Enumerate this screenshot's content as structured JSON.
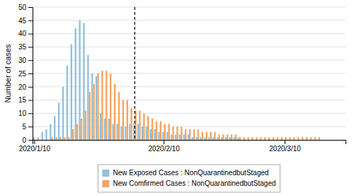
{
  "chart_data": {
    "type": "bar",
    "ylabel": "Number of cases",
    "categories": [
      "2020/1/10",
      null,
      null,
      null,
      null,
      null,
      null,
      null,
      null,
      null,
      null,
      null,
      null,
      null,
      null,
      null,
      null,
      null,
      null,
      null,
      null,
      null,
      null,
      null,
      null,
      null,
      null,
      null,
      null,
      null,
      null,
      "2020/2/10",
      null,
      null,
      null,
      null,
      null,
      null,
      null,
      null,
      null,
      null,
      null,
      null,
      null,
      null,
      null,
      null,
      null,
      null,
      null,
      null,
      null,
      null,
      null,
      null,
      null,
      null,
      null,
      null,
      "2020/3/10",
      null,
      null,
      null,
      null,
      null,
      null,
      null,
      null,
      null,
      null,
      null,
      null,
      null,
      null
    ],
    "series": [
      {
        "name": "New Exposed Cases : NonQuarantinedbutStaged",
        "color": "#92c0dd",
        "values": [
          1,
          1,
          3,
          4,
          6,
          9,
          14,
          20,
          28,
          36,
          42,
          45,
          44,
          32,
          25,
          24,
          10,
          8,
          8,
          6,
          6,
          5,
          5,
          6,
          6,
          6,
          5,
          5,
          4,
          4,
          3,
          3,
          3,
          2,
          2,
          2,
          2,
          2,
          1,
          1,
          1,
          1,
          1,
          1,
          1,
          1,
          1,
          1,
          1,
          1,
          0,
          0,
          0,
          0,
          0,
          0,
          0,
          0,
          0,
          0,
          0,
          0,
          0,
          0,
          0,
          0,
          0,
          0,
          0,
          0,
          0,
          0,
          0,
          0,
          0
        ]
      },
      {
        "name": "New Comfirmed Cases : NonQuarantinedbutStaged",
        "color": "#f4a460",
        "values": [
          0,
          0,
          0,
          0,
          1,
          1,
          1,
          1,
          1,
          4,
          6,
          8,
          11,
          18,
          21,
          25,
          26,
          26,
          25,
          21,
          18,
          15,
          15,
          12,
          11,
          11,
          10,
          9,
          8,
          7,
          7,
          6,
          6,
          5,
          5,
          5,
          4,
          4,
          4,
          4,
          3,
          3,
          3,
          3,
          2,
          2,
          2,
          2,
          2,
          1,
          1,
          1,
          1,
          1,
          1,
          1,
          1,
          1,
          1,
          1,
          1,
          1,
          1,
          1,
          1,
          1,
          1,
          1,
          1,
          0,
          0,
          0,
          0,
          0,
          0
        ]
      }
    ],
    "vline": 24,
    "ylim": [
      0,
      50
    ],
    "yticks": [
      0,
      5,
      10,
      15,
      20,
      25,
      30,
      35,
      40,
      45,
      50
    ],
    "grid": true,
    "legend": "bottom"
  }
}
